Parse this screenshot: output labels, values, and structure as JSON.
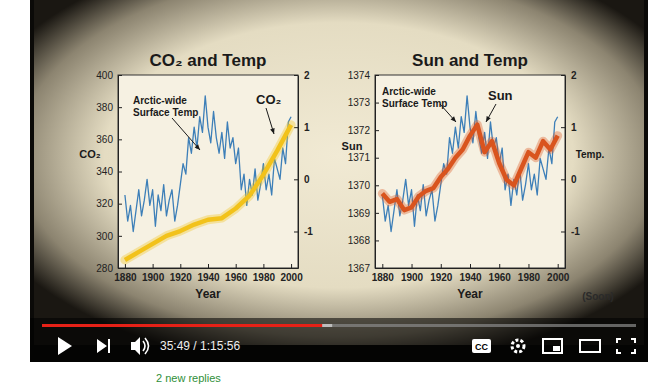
{
  "chart_data": [
    {
      "type": "line",
      "title": "CO₂ and Temp",
      "x_label": "Year",
      "y_label": "CO₂",
      "xlim": [
        1875,
        2005
      ],
      "xticks": [
        1880,
        1900,
        1920,
        1940,
        1960,
        1980,
        2000
      ],
      "ylim": [
        280,
        400
      ],
      "yticks": [
        280,
        300,
        320,
        340,
        360,
        380,
        400
      ],
      "y2lim": [
        -1.7,
        2
      ],
      "y2ticks": [
        -1,
        0,
        1,
        2
      ],
      "series": [
        {
          "name": "Arctic-wide Surface Temp",
          "color": "#3d7fb8",
          "axis": "y2",
          "x": [
            1880,
            1882,
            1884,
            1886,
            1888,
            1890,
            1892,
            1894,
            1896,
            1898,
            1900,
            1902,
            1904,
            1906,
            1908,
            1910,
            1912,
            1914,
            1916,
            1918,
            1920,
            1922,
            1924,
            1926,
            1928,
            1930,
            1932,
            1934,
            1936,
            1938,
            1940,
            1942,
            1944,
            1946,
            1948,
            1950,
            1952,
            1954,
            1956,
            1958,
            1960,
            1962,
            1964,
            1966,
            1968,
            1970,
            1972,
            1974,
            1976,
            1978,
            1980,
            1982,
            1984,
            1986,
            1988,
            1990,
            1992,
            1994,
            1996,
            1998,
            2000
          ],
          "values": [
            -0.3,
            -0.8,
            -0.5,
            -1.0,
            -0.6,
            -0.2,
            -0.7,
            -0.4,
            0.0,
            -0.5,
            -0.2,
            -0.9,
            -0.3,
            -0.6,
            -0.1,
            -0.7,
            -0.4,
            -0.2,
            -0.8,
            -0.5,
            -0.1,
            0.3,
            0.1,
            0.8,
            0.5,
            1.0,
            0.6,
            1.2,
            0.9,
            1.6,
            1.0,
            0.7,
            1.3,
            0.8,
            0.5,
            0.9,
            0.4,
            1.1,
            0.6,
            0.8,
            0.3,
            0.6,
            -0.2,
            0.1,
            -0.5,
            0.0,
            -0.3,
            0.2,
            -0.4,
            -0.1,
            0.3,
            -0.2,
            0.1,
            -0.3,
            0.4,
            0.2,
            0.0,
            0.6,
            0.3,
            1.1,
            1.2
          ]
        },
        {
          "name": "CO₂",
          "color": "#f2c21b",
          "axis": "y",
          "x": [
            1880,
            1890,
            1900,
            1910,
            1920,
            1930,
            1940,
            1950,
            1960,
            1970,
            1980,
            1990,
            2000
          ],
          "values": [
            285,
            290,
            295,
            300,
            303,
            307,
            310,
            311,
            317,
            325,
            338,
            353,
            369
          ]
        }
      ]
    },
    {
      "type": "line",
      "title": "Sun and Temp",
      "x_label": "Year",
      "y_label": "Sun",
      "y2_label": "Temp.",
      "annotations": [
        "(Soon)"
      ],
      "xlim": [
        1875,
        2005
      ],
      "xticks": [
        1880,
        1900,
        1920,
        1940,
        1960,
        1980,
        2000
      ],
      "ylim": [
        1367,
        1374
      ],
      "yticks": [
        1367,
        1368,
        1369,
        1370,
        1371,
        1372,
        1373,
        1374
      ],
      "y2lim": [
        -1.7,
        2
      ],
      "y2ticks": [
        -1,
        0,
        1,
        2
      ],
      "series": [
        {
          "name": "Arctic-wide Surface Temp",
          "color": "#3d7fb8",
          "axis": "y2",
          "x": [
            1880,
            1882,
            1884,
            1886,
            1888,
            1890,
            1892,
            1894,
            1896,
            1898,
            1900,
            1902,
            1904,
            1906,
            1908,
            1910,
            1912,
            1914,
            1916,
            1918,
            1920,
            1922,
            1924,
            1926,
            1928,
            1930,
            1932,
            1934,
            1936,
            1938,
            1940,
            1942,
            1944,
            1946,
            1948,
            1950,
            1952,
            1954,
            1956,
            1958,
            1960,
            1962,
            1964,
            1966,
            1968,
            1970,
            1972,
            1974,
            1976,
            1978,
            1980,
            1982,
            1984,
            1986,
            1988,
            1990,
            1992,
            1994,
            1996,
            1998,
            2000
          ],
          "values": [
            -0.3,
            -0.8,
            -0.5,
            -1.0,
            -0.6,
            -0.2,
            -0.7,
            -0.4,
            0.0,
            -0.5,
            -0.2,
            -0.9,
            -0.3,
            -0.6,
            -0.1,
            -0.7,
            -0.4,
            -0.2,
            -0.8,
            -0.5,
            -0.1,
            0.3,
            0.1,
            0.8,
            0.5,
            1.0,
            0.6,
            1.2,
            0.9,
            1.6,
            1.0,
            0.7,
            1.3,
            0.8,
            0.5,
            0.9,
            0.4,
            1.1,
            0.6,
            0.8,
            0.3,
            0.6,
            -0.2,
            0.1,
            -0.5,
            0.0,
            -0.3,
            0.2,
            -0.4,
            -0.1,
            0.3,
            -0.2,
            0.1,
            -0.3,
            0.4,
            0.2,
            0.0,
            0.6,
            0.3,
            1.1,
            1.2
          ]
        },
        {
          "name": "Sun",
          "color": "#d9541e",
          "axis": "y",
          "x": [
            1880,
            1885,
            1890,
            1895,
            1900,
            1905,
            1910,
            1915,
            1920,
            1925,
            1930,
            1935,
            1940,
            1945,
            1950,
            1955,
            1960,
            1965,
            1970,
            1975,
            1980,
            1985,
            1990,
            1995,
            2000
          ],
          "values": [
            1369.7,
            1369.4,
            1369.5,
            1369.1,
            1369.2,
            1369.6,
            1369.8,
            1369.9,
            1370.3,
            1370.6,
            1371.0,
            1371.3,
            1371.8,
            1372.2,
            1371.2,
            1371.6,
            1370.8,
            1370.2,
            1370.0,
            1370.6,
            1371.2,
            1371.0,
            1371.6,
            1371.3,
            1371.8
          ]
        }
      ]
    }
  ],
  "player": {
    "time": "35:49 / 1:15:56",
    "captions_button": "CC"
  },
  "page": {
    "replies_text": "2 new replies"
  }
}
